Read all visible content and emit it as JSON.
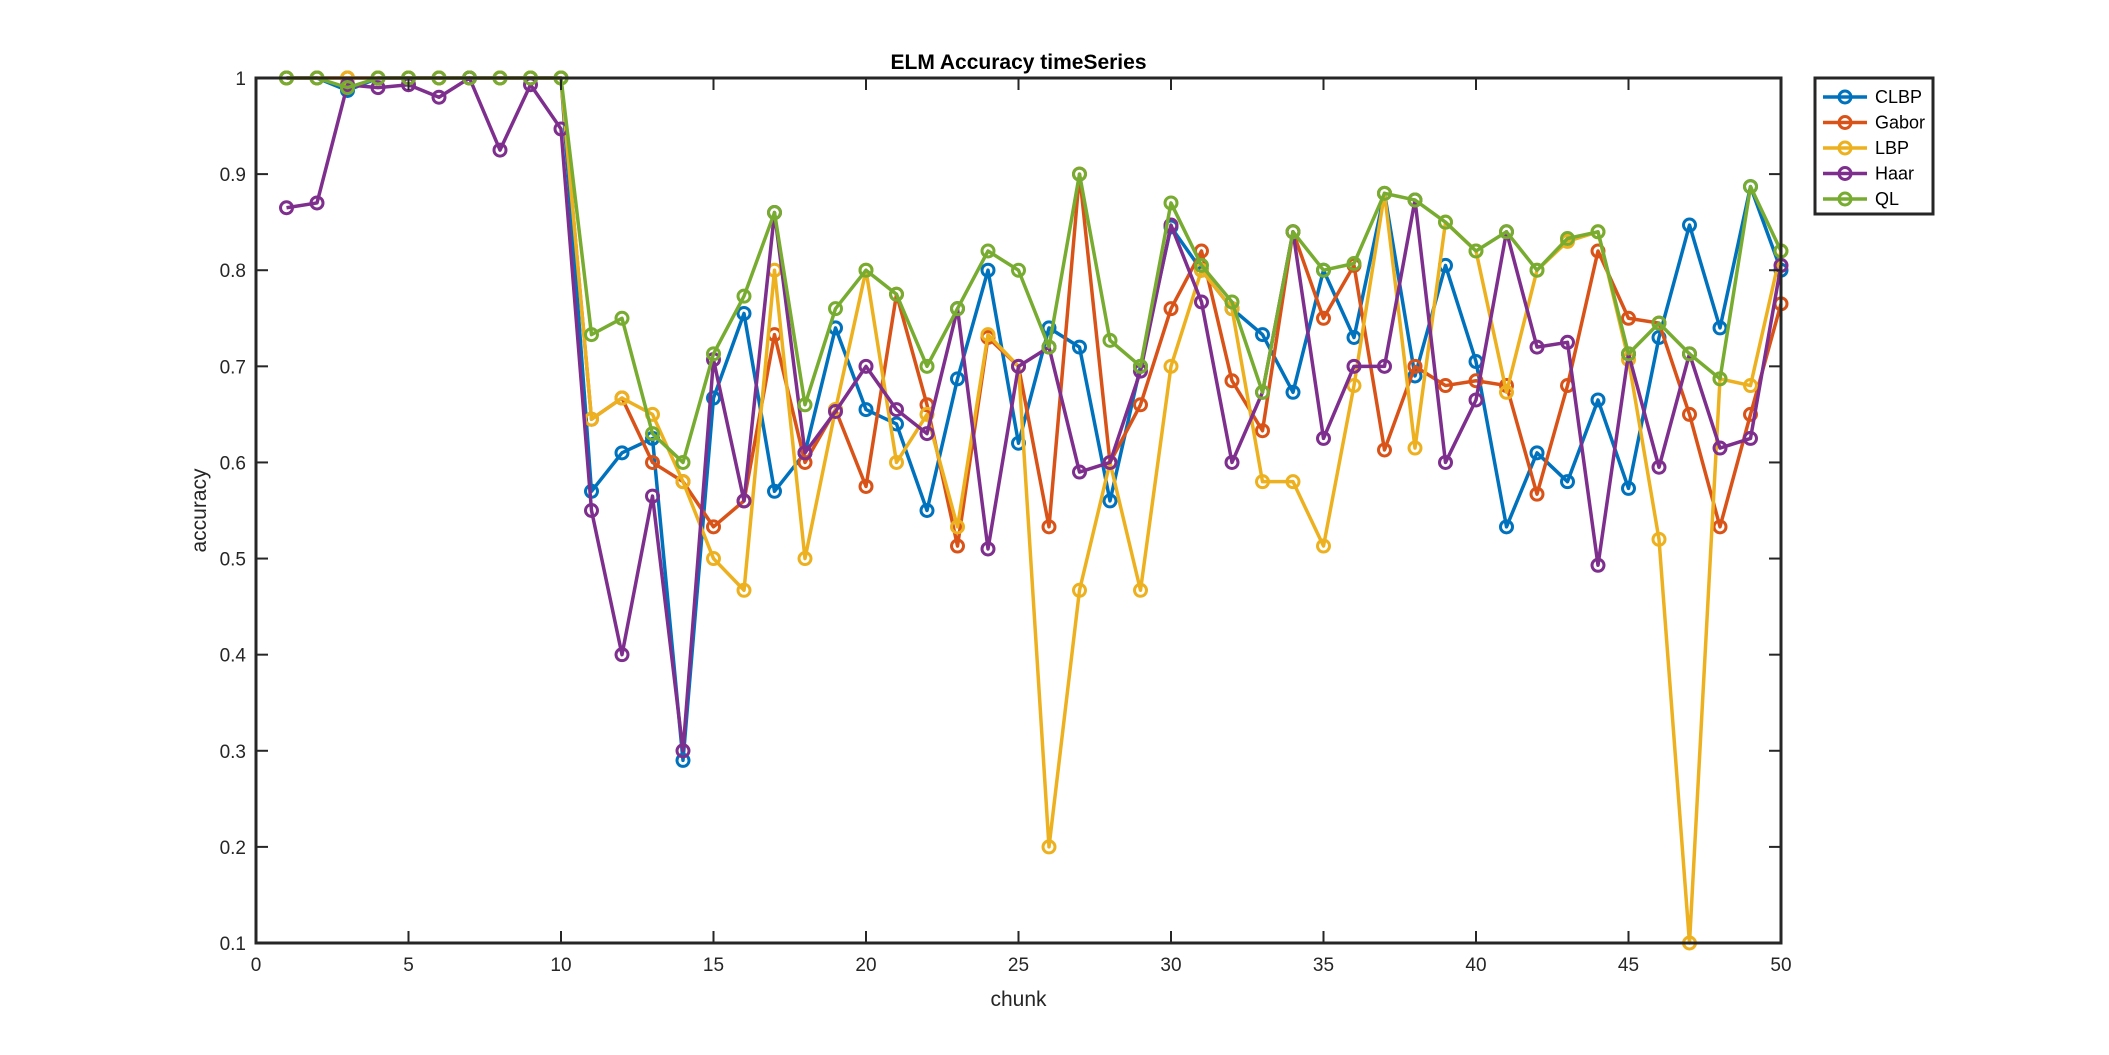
{
  "chart_data": {
    "type": "line",
    "title": "ELM Accuracy timeSeries",
    "xlabel": "chunk",
    "ylabel": "accuracy",
    "xlim": [
      0,
      50
    ],
    "ylim": [
      0.1,
      1
    ],
    "xticks": [
      0,
      5,
      10,
      15,
      20,
      25,
      30,
      35,
      40,
      45,
      50
    ],
    "yticks": [
      0.1,
      0.2,
      0.3,
      0.4,
      0.5,
      0.6,
      0.7,
      0.8,
      0.9,
      1
    ],
    "grid": false,
    "legend_position": "outside-top-right",
    "x": [
      1,
      2,
      3,
      4,
      5,
      6,
      7,
      8,
      9,
      10,
      11,
      12,
      13,
      14,
      15,
      16,
      17,
      18,
      19,
      20,
      21,
      22,
      23,
      24,
      25,
      26,
      27,
      28,
      29,
      30,
      31,
      32,
      33,
      34,
      35,
      36,
      37,
      38,
      39,
      40,
      41,
      42,
      43,
      44,
      45,
      46,
      47,
      48,
      49,
      50
    ],
    "series": [
      {
        "name": "CLBP",
        "color": "#0072BD",
        "values": [
          1,
          1,
          0.987,
          1,
          1,
          1,
          1,
          1,
          1,
          1,
          0.57,
          0.61,
          0.625,
          0.29,
          0.667,
          0.755,
          0.57,
          0.61,
          0.74,
          0.655,
          0.64,
          0.55,
          0.687,
          0.8,
          0.62,
          0.74,
          0.72,
          0.56,
          0.7,
          0.845,
          0.8,
          0.76,
          0.733,
          0.673,
          0.8,
          0.73,
          0.88,
          0.69,
          0.805,
          0.705,
          0.533,
          0.61,
          0.58,
          0.665,
          0.573,
          0.73,
          0.847,
          0.74,
          0.887,
          0.8
        ]
      },
      {
        "name": "Gabor",
        "color": "#D95319",
        "values": [
          1,
          1,
          1,
          1,
          1,
          1,
          1,
          1,
          1,
          1,
          0.645,
          0.667,
          0.6,
          0.58,
          0.533,
          0.56,
          0.733,
          0.6,
          0.655,
          0.575,
          0.775,
          0.66,
          0.513,
          0.73,
          0.7,
          0.533,
          0.9,
          0.6,
          0.66,
          0.76,
          0.82,
          0.685,
          0.633,
          0.84,
          0.75,
          0.805,
          0.613,
          0.7,
          0.68,
          0.685,
          0.68,
          0.567,
          0.68,
          0.82,
          0.75,
          0.745,
          0.65,
          0.533,
          0.65,
          0.765
        ]
      },
      {
        "name": "LBP",
        "color": "#EDB120",
        "values": [
          1,
          1,
          1,
          1,
          1,
          1,
          1,
          1,
          1,
          1,
          0.645,
          0.667,
          0.65,
          0.58,
          0.5,
          0.467,
          0.8,
          0.5,
          0.655,
          0.8,
          0.6,
          0.65,
          0.533,
          0.733,
          0.7,
          0.2,
          0.467,
          0.6,
          0.467,
          0.7,
          0.8,
          0.76,
          0.58,
          0.58,
          0.513,
          0.68,
          0.88,
          0.615,
          0.85,
          0.82,
          0.673,
          0.8,
          0.83,
          0.84,
          0.707,
          0.52,
          0.1,
          0.687,
          0.68,
          0.82
        ]
      },
      {
        "name": "Haar",
        "color": "#7E2F8E",
        "values": [
          0.865,
          0.87,
          0.993,
          0.99,
          0.993,
          0.98,
          1,
          0.925,
          0.993,
          0.947,
          0.55,
          0.4,
          0.565,
          0.3,
          0.707,
          0.56,
          0.86,
          0.61,
          0.653,
          0.7,
          0.655,
          0.63,
          0.76,
          0.51,
          0.7,
          0.72,
          0.59,
          0.6,
          0.695,
          0.847,
          0.767,
          0.6,
          0.673,
          0.84,
          0.625,
          0.7,
          0.7,
          0.873,
          0.6,
          0.665,
          0.84,
          0.72,
          0.725,
          0.493,
          0.713,
          0.595,
          0.713,
          0.615,
          0.625,
          0.805
        ]
      },
      {
        "name": "QL",
        "color": "#77AC30",
        "values": [
          1,
          1,
          0.99,
          1,
          1,
          1,
          1,
          1,
          1,
          1,
          0.733,
          0.75,
          0.63,
          0.6,
          0.713,
          0.773,
          0.86,
          0.66,
          0.76,
          0.8,
          0.775,
          0.7,
          0.76,
          0.82,
          0.8,
          0.72,
          0.9,
          0.727,
          0.7,
          0.87,
          0.805,
          0.767,
          0.673,
          0.84,
          0.8,
          0.807,
          0.88,
          0.873,
          0.85,
          0.82,
          0.84,
          0.8,
          0.833,
          0.84,
          0.713,
          0.745,
          0.713,
          0.687,
          0.887,
          0.82
        ]
      }
    ]
  }
}
